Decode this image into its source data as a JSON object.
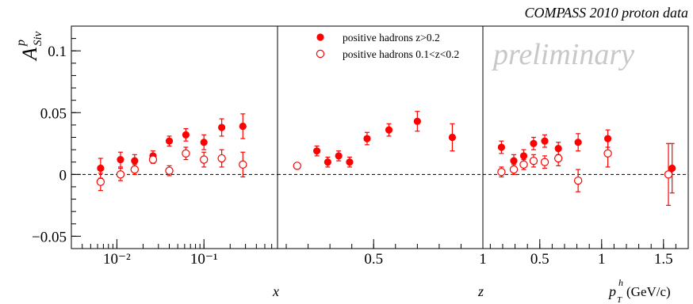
{
  "chart_data": {
    "type": "scatter",
    "title": "COMPASS 2010 proton data",
    "watermark": "preliminary",
    "ylabel": {
      "main": "A",
      "sup": "p",
      "sub": "Siv"
    },
    "ylim": [
      -0.06,
      0.12
    ],
    "yticks": [
      {
        "v": 0.1,
        "label": "0.1"
      },
      {
        "v": 0.05,
        "label": "0.05"
      },
      {
        "v": 0,
        "label": "0"
      },
      {
        "v": -0.05,
        "label": "−0.05"
      }
    ],
    "legend": {
      "position": "top-center",
      "entries": [
        {
          "symbol": "filled",
          "label": "positive hadrons z>0.2"
        },
        {
          "symbol": "open",
          "label": "positive hadrons 0.1<z<0.2"
        }
      ]
    },
    "colors": {
      "points": "#ff0000",
      "zero_line": "#000000",
      "watermark": "#c8c8c8"
    },
    "panels": [
      {
        "id": "x",
        "xlabel": "x",
        "xscale": "log",
        "xlim": [
          0.003,
          0.7
        ],
        "xticks": [
          {
            "v": 0.01,
            "label": "10⁻²"
          },
          {
            "v": 0.1,
            "label": "10⁻¹"
          }
        ],
        "series": [
          {
            "name": "positive hadrons z>0.2",
            "symbol": "filled",
            "x": [
              0.0065,
              0.011,
              0.016,
              0.026,
              0.04,
              0.062,
              0.1,
              0.16,
              0.28
            ],
            "y": [
              0.005,
              0.012,
              0.011,
              0.015,
              0.027,
              0.032,
              0.026,
              0.038,
              0.039
            ],
            "err": [
              0.008,
              0.006,
              0.005,
              0.004,
              0.004,
              0.005,
              0.006,
              0.007,
              0.01
            ]
          },
          {
            "name": "positive hadrons 0.1<z<0.2",
            "symbol": "open",
            "x": [
              0.0065,
              0.011,
              0.016,
              0.026,
              0.04,
              0.062,
              0.1,
              0.16,
              0.28
            ],
            "y": [
              -0.006,
              0.0,
              0.004,
              0.012,
              0.003,
              0.017,
              0.012,
              0.013,
              0.008
            ],
            "err": [
              0.007,
              0.005,
              0.004,
              0.003,
              0.004,
              0.005,
              0.006,
              0.007,
              0.01
            ]
          }
        ]
      },
      {
        "id": "z",
        "xlabel": "z",
        "xscale": "linear",
        "xlim": [
          0.06,
          1.0
        ],
        "xticks": [
          {
            "v": 0.5,
            "label": "0.5"
          },
          {
            "v": 1.0,
            "label": "1"
          }
        ],
        "series": [
          {
            "name": "positive hadrons z>0.2",
            "symbol": "filled",
            "x": [
              0.24,
              0.29,
              0.34,
              0.39,
              0.47,
              0.57,
              0.7,
              0.86
            ],
            "y": [
              0.019,
              0.01,
              0.015,
              0.01,
              0.029,
              0.036,
              0.043,
              0.03
            ],
            "err": [
              0.004,
              0.004,
              0.004,
              0.004,
              0.005,
              0.005,
              0.008,
              0.011
            ]
          },
          {
            "name": "positive hadrons 0.1<z<0.2",
            "symbol": "open",
            "x": [
              0.15
            ],
            "y": [
              0.007
            ],
            "err": [
              0.002
            ]
          }
        ]
      },
      {
        "id": "pt",
        "xlabel": {
          "main": "p",
          "sup": "h",
          "sub": "T",
          "unit": " (GeV/c)"
        },
        "xscale": "linear",
        "xlim": [
          0.04,
          1.7
        ],
        "xticks": [
          {
            "v": 0.5,
            "label": "0.5"
          },
          {
            "v": 1.0,
            "label": "1"
          },
          {
            "v": 1.5,
            "label": "1.5"
          }
        ],
        "series": [
          {
            "name": "positive hadrons z>0.2",
            "symbol": "filled",
            "x": [
              0.19,
              0.29,
              0.37,
              0.45,
              0.54,
              0.65,
              0.81,
              1.05,
              1.57
            ],
            "y": [
              0.022,
              0.011,
              0.015,
              0.025,
              0.027,
              0.021,
              0.026,
              0.029,
              0.005
            ],
            "err": [
              0.005,
              0.005,
              0.005,
              0.005,
              0.005,
              0.005,
              0.007,
              0.007,
              0.02
            ]
          },
          {
            "name": "positive hadrons 0.1<z<0.2",
            "symbol": "open",
            "x": [
              0.19,
              0.29,
              0.37,
              0.45,
              0.54,
              0.65,
              0.81,
              1.05,
              1.54
            ],
            "y": [
              0.002,
              0.004,
              0.008,
              0.011,
              0.01,
              0.013,
              -0.005,
              0.017,
              0.0
            ],
            "err": [
              0.004,
              0.004,
              0.004,
              0.005,
              0.005,
              0.006,
              0.009,
              0.011,
              0.025
            ]
          }
        ]
      }
    ]
  }
}
